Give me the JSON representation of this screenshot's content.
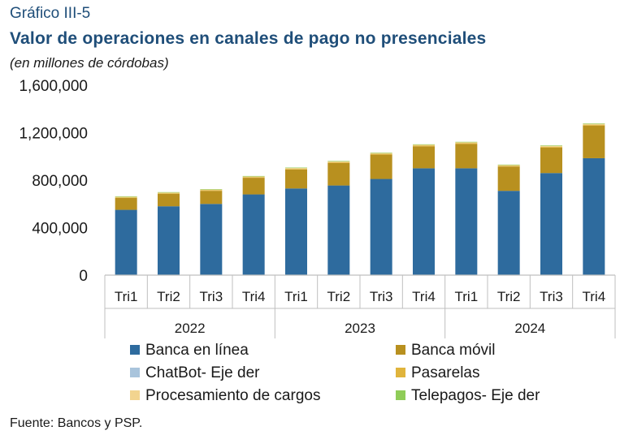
{
  "header": {
    "number": "Gráfico III-5",
    "title": "Valor de operaciones en canales de pago no presenciales",
    "subtitle": "(en millones de córdobas)"
  },
  "footer": {
    "source": "Fuente: Bancos y PSP."
  },
  "colors": {
    "banca_en_linea": "#2e6b9e",
    "banca_movil": "#b8901f",
    "chatbot": "#a9c4dc",
    "pasarelas": "#e0b43c",
    "procesamiento": "#f2d48f",
    "telepagos": "#8fcc58",
    "axis": "#bfbfbf"
  },
  "chart_data": {
    "type": "bar",
    "stacked": true,
    "categories": [
      "Tri1",
      "Tri2",
      "Tri3",
      "Tri4",
      "Tri1",
      "Tri2",
      "Tri3",
      "Tri4",
      "Tri1",
      "Tri2",
      "Tri3",
      "Tri4"
    ],
    "groups": [
      {
        "label": "2022",
        "span": 4
      },
      {
        "label": "2023",
        "span": 4
      },
      {
        "label": "2024",
        "span": 4
      }
    ],
    "ylim": [
      0,
      1600000
    ],
    "yticks": [
      0,
      400000,
      800000,
      1200000,
      1600000
    ],
    "ytick_labels": [
      "0",
      "400,000",
      "800,000",
      "1,200,000",
      "1,600,000"
    ],
    "gridlines": false,
    "legend_position": "bottom",
    "series": [
      {
        "name": "Banca en línea",
        "color_key": "banca_en_linea",
        "values": [
          550000,
          580000,
          600000,
          680000,
          730000,
          755000,
          810000,
          900000,
          900000,
          710000,
          860000,
          985000
        ]
      },
      {
        "name": "Banca móvil",
        "color_key": "banca_movil",
        "values": [
          100000,
          105000,
          110000,
          140000,
          160000,
          190000,
          205000,
          185000,
          205000,
          205000,
          215000,
          275000
        ]
      },
      {
        "name": "ChatBot- Eje der",
        "color_key": "chatbot",
        "values": [
          0,
          0,
          0,
          0,
          0,
          0,
          0,
          0,
          0,
          0,
          0,
          0
        ]
      },
      {
        "name": "Pasarelas",
        "color_key": "pasarelas",
        "values": [
          5000,
          5000,
          5000,
          5000,
          5000,
          6000,
          6000,
          6000,
          7000,
          6000,
          7000,
          7000
        ]
      },
      {
        "name": "Procesamiento de cargos",
        "color_key": "procesamiento",
        "values": [
          7000,
          7000,
          7000,
          8000,
          8000,
          8000,
          8000,
          8000,
          8000,
          7000,
          8000,
          8000
        ]
      },
      {
        "name": "Telepagos- Eje der",
        "color_key": "telepagos",
        "values": [
          2000,
          2000,
          2000,
          2000,
          3000,
          3000,
          3000,
          3000,
          3000,
          3000,
          3000,
          3000
        ]
      }
    ]
  }
}
